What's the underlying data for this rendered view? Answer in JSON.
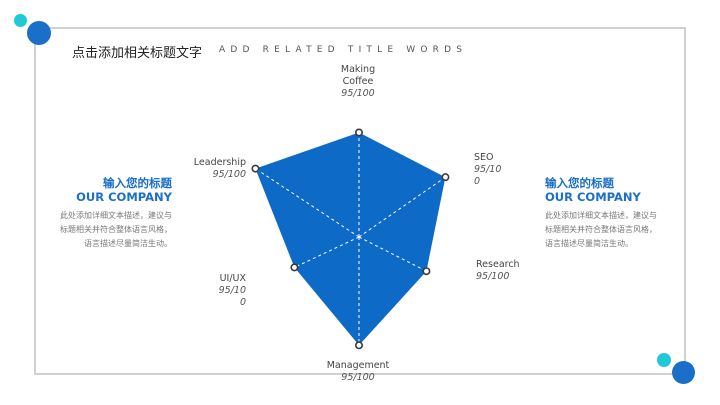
{
  "header": {
    "title": "点击添加相关标题文字",
    "subtitle": "ADD RELATED TITLE WORDS"
  },
  "left_block": {
    "heading": "输入您的标题",
    "heading_en": "OUR COMPANY",
    "desc_lines": [
      "此处添加详细文本描述，建议与",
      "标题相关并符合整体语言风格，",
      "语言描述尽量简洁生动。"
    ]
  },
  "right_block": {
    "heading": "输入您的标题",
    "heading_en": "OUR COMPANY",
    "desc_lines": [
      "此处添加详细文本描述，建议与",
      "标题相关并符合整体语言风格，",
      "语言描述尽量简洁生动。"
    ]
  },
  "chart_data": {
    "type": "radar",
    "axes": [
      {
        "name_lines": [
          "Making",
          "Coffee"
        ],
        "value_lines": [
          "95/100"
        ],
        "score": 95,
        "max": 100
      },
      {
        "name_lines": [
          "SEO"
        ],
        "value_lines": [
          "95/10",
          "0"
        ],
        "score": 95,
        "max": 100
      },
      {
        "name_lines": [
          "Research"
        ],
        "value_lines": [
          "95/100"
        ],
        "score": 95,
        "max": 100
      },
      {
        "name_lines": [
          "Management"
        ],
        "value_lines": [
          "95/100"
        ],
        "score": 95,
        "max": 100
      },
      {
        "name_lines": [
          "UI/UX"
        ],
        "value_lines": [
          "95/10",
          "0"
        ],
        "score": 95,
        "max": 100
      },
      {
        "name_lines": [
          "Leadership"
        ],
        "value_lines": [
          "95/100"
        ],
        "score": 95,
        "max": 100
      }
    ]
  },
  "colors": {
    "accent": "#1a6fc9",
    "accent2": "#22c8d8",
    "fill": "#0e6ac7"
  },
  "icons": {
    "decor_dots": "circle-dots"
  }
}
